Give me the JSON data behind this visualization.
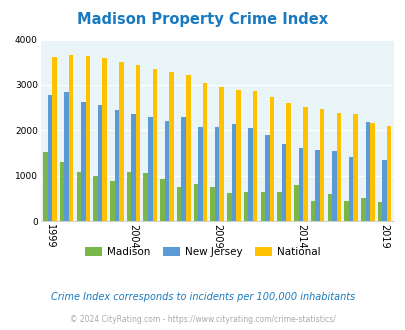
{
  "title": "Madison Property Crime Index",
  "title_color": "#1a7abf",
  "years": [
    1999,
    2000,
    2001,
    2002,
    2003,
    2004,
    2005,
    2006,
    2007,
    2008,
    2009,
    2010,
    2011,
    2012,
    2013,
    2014,
    2015,
    2016,
    2017,
    2018,
    2019
  ],
  "madison": [
    1520,
    1310,
    1090,
    1000,
    880,
    1080,
    1050,
    930,
    750,
    820,
    760,
    630,
    650,
    650,
    640,
    790,
    440,
    600,
    440,
    510,
    430
  ],
  "new_jersey": [
    2780,
    2850,
    2630,
    2550,
    2450,
    2350,
    2290,
    2210,
    2290,
    2080,
    2080,
    2140,
    2050,
    1900,
    1700,
    1620,
    1560,
    1540,
    1420,
    2180,
    1340
  ],
  "national": [
    3620,
    3670,
    3640,
    3600,
    3500,
    3440,
    3360,
    3280,
    3210,
    3040,
    2950,
    2900,
    2860,
    2740,
    2600,
    2510,
    2460,
    2380,
    2360,
    2170,
    2100
  ],
  "madison_color": "#7ab648",
  "nj_color": "#5b9bd5",
  "national_color": "#ffc000",
  "bg_color": "#e8f4f8",
  "ylim": [
    0,
    4000
  ],
  "yticks": [
    0,
    1000,
    2000,
    3000,
    4000
  ],
  "xtick_years": [
    1999,
    2004,
    2009,
    2014,
    2019
  ],
  "grid_color": "#ffffff",
  "subtitle": "Crime Index corresponds to incidents per 100,000 inhabitants",
  "footer": "© 2024 CityRating.com - https://www.cityrating.com/crime-statistics/",
  "subtitle_color": "#1a7abf",
  "footer_color": "#aaaaaa"
}
